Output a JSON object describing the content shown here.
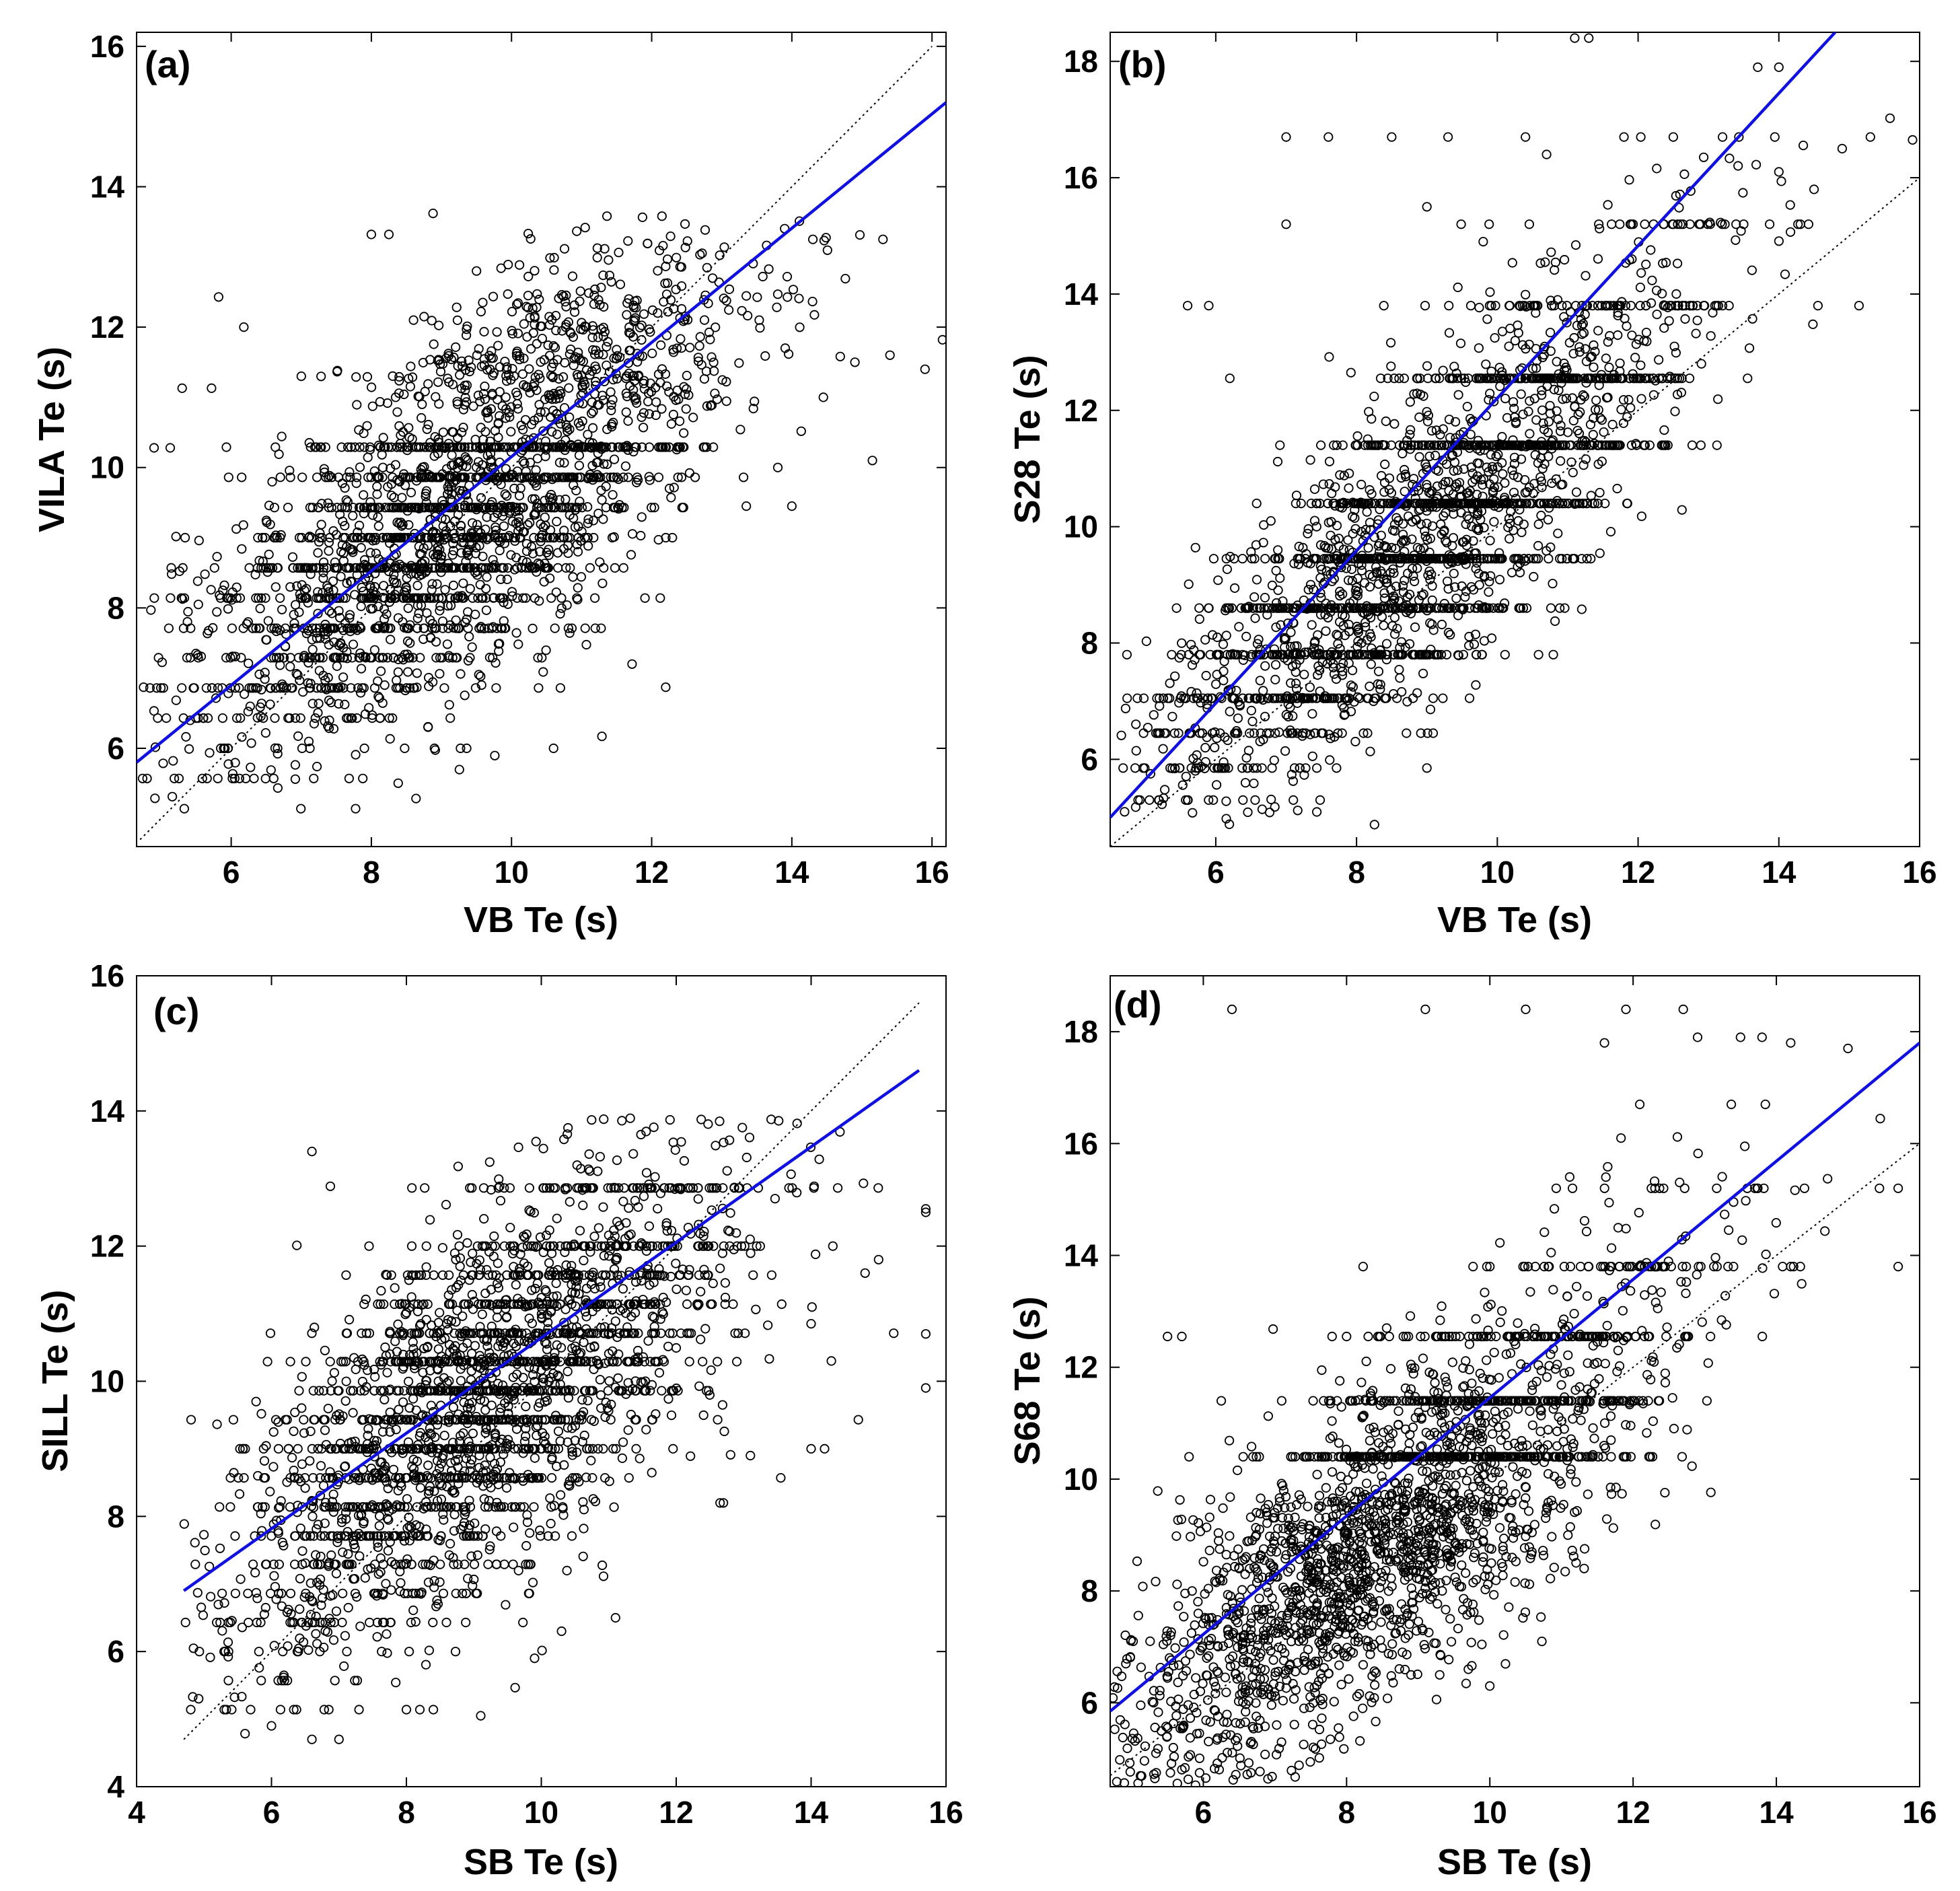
{
  "colors": {
    "fit_line": "#1010e0",
    "points": "#000000",
    "reference_line": "#000000"
  },
  "chart_data": [
    {
      "type": "scatter",
      "panel_label": "(a)",
      "xlabel": "VB Te (s)",
      "ylabel": "VILA Te (s)",
      "xlim": [
        4.65,
        16.2
      ],
      "ylim": [
        4.6,
        16.2
      ],
      "xticks": [
        6,
        8,
        10,
        12,
        14,
        16
      ],
      "yticks": [
        6,
        8,
        10,
        12,
        14,
        16
      ],
      "reference_line": {
        "style": "dotted",
        "x": [
          4.7,
          16.0
        ],
        "y": [
          4.7,
          16.0
        ]
      },
      "fit_line": {
        "x": [
          4.65,
          16.2
        ],
        "y": [
          5.8,
          15.2
        ]
      },
      "point_cloud": {
        "center": [
          9.2,
          9.3
        ],
        "spread": [
          1.9,
          1.75
        ],
        "correlation": 0.72,
        "x_range": [
          4.7,
          16.1
        ],
        "y_range": [
          5.1,
          13.6
        ],
        "quantized_y_levels": [
          5.14,
          5.57,
          6.0,
          6.43,
          6.86,
          7.29,
          7.71,
          8.14,
          8.57,
          9.0,
          9.43,
          9.86,
          10.29
        ]
      },
      "points": [
        [
          4.75,
          6.87
        ],
        [
          4.9,
          10.28
        ],
        [
          5.13,
          10.28
        ],
        [
          5.3,
          11.13
        ],
        [
          5.72,
          11.13
        ],
        [
          5.82,
          12.43
        ],
        [
          6.18,
          12.0
        ],
        [
          7.0,
          11.3
        ],
        [
          8.0,
          13.32
        ],
        [
          8.25,
          13.32
        ],
        [
          8.88,
          13.62
        ],
        [
          9.5,
          12.8
        ],
        [
          10.6,
          6.0
        ],
        [
          11.29,
          6.17
        ],
        [
          11.72,
          7.2
        ],
        [
          12.2,
          6.87
        ],
        [
          13.35,
          9.45
        ],
        [
          13.8,
          10.0
        ],
        [
          14.0,
          9.45
        ],
        [
          14.3,
          13.25
        ],
        [
          14.45,
          11.0
        ],
        [
          14.9,
          11.5
        ],
        [
          15.15,
          10.1
        ],
        [
          15.3,
          13.25
        ],
        [
          15.4,
          11.6
        ],
        [
          15.9,
          11.4
        ],
        [
          16.15,
          11.82
        ]
      ]
    },
    {
      "type": "scatter",
      "panel_label": "(b)",
      "xlabel": "VB Te (s)",
      "ylabel": "S28 Te (s)",
      "xlim": [
        4.5,
        16.0
      ],
      "ylim": [
        4.5,
        18.5
      ],
      "xticks": [
        6,
        8,
        10,
        12,
        14,
        16
      ],
      "yticks": [
        6,
        8,
        10,
        12,
        14,
        16,
        18
      ],
      "reference_line": {
        "style": "dotted",
        "x": [
          4.5,
          16.0
        ],
        "y": [
          4.5,
          16.0
        ]
      },
      "fit_line": {
        "x": [
          4.5,
          14.8
        ],
        "y": [
          5.0,
          18.5
        ]
      },
      "point_cloud": {
        "center": [
          9.0,
          9.9
        ],
        "spread": [
          1.9,
          2.3
        ],
        "correlation": 0.82,
        "x_range": [
          4.6,
          15.9
        ],
        "y_range": [
          4.8,
          17.9
        ],
        "quantized_y_levels": [
          5.3,
          5.85,
          6.45,
          7.05,
          7.8,
          8.6,
          9.45,
          10.4,
          11.4,
          12.55,
          13.8,
          15.2,
          16.7
        ]
      },
      "points": [
        [
          5.6,
          13.8
        ],
        [
          5.9,
          13.8
        ],
        [
          6.2,
          12.55
        ],
        [
          7.0,
          15.2
        ],
        [
          7.0,
          16.7
        ],
        [
          8.5,
          16.7
        ],
        [
          9.0,
          15.5
        ],
        [
          9.3,
          16.7
        ],
        [
          9.8,
          14.9
        ],
        [
          10.7,
          16.4
        ],
        [
          11.1,
          18.4
        ],
        [
          11.3,
          18.4
        ],
        [
          11.2,
          8.58
        ],
        [
          9.0,
          5.85
        ],
        [
          12.9,
          12.8
        ],
        [
          13.7,
          17.9
        ],
        [
          14.0,
          17.9
        ],
        [
          14.0,
          16.1
        ],
        [
          14.5,
          15.8
        ],
        [
          14.9,
          16.5
        ],
        [
          15.3,
          16.7
        ],
        [
          15.9,
          16.65
        ],
        [
          13.2,
          16.7
        ],
        [
          12.5,
          16.7
        ],
        [
          11.8,
          16.7
        ],
        [
          10.4,
          16.7
        ],
        [
          7.6,
          16.7
        ],
        [
          13.5,
          15.2
        ],
        [
          13.2,
          13.8
        ]
      ]
    },
    {
      "type": "scatter",
      "panel_label": "(c)",
      "xlabel": "SB Te (s)",
      "ylabel": "SILL Te (s)",
      "xlim": [
        4.0,
        16.0
      ],
      "ylim": [
        4.0,
        16.0
      ],
      "xticks": [
        4,
        6,
        8,
        10,
        12,
        14,
        16
      ],
      "yticks": [
        4,
        6,
        8,
        10,
        12,
        14,
        16
      ],
      "reference_line": {
        "style": "dotted",
        "x": [
          4.7,
          15.6
        ],
        "y": [
          4.7,
          15.6
        ]
      },
      "fit_line": {
        "x": [
          4.7,
          15.6
        ],
        "y": [
          6.9,
          14.6
        ]
      },
      "point_cloud": {
        "center": [
          9.1,
          9.7
        ],
        "spread": [
          1.9,
          1.85
        ],
        "correlation": 0.7,
        "x_range": [
          4.7,
          15.7
        ],
        "y_range": [
          4.7,
          13.9
        ],
        "quantized_y_levels": [
          5.14,
          5.57,
          6.0,
          6.43,
          6.86,
          7.29,
          7.71,
          8.14,
          8.57,
          9.0,
          9.43,
          9.86,
          10.29,
          10.71,
          11.14,
          11.57,
          12.0,
          12.86
        ]
      },
      "points": [
        [
          5.3,
          5.14
        ],
        [
          6.6,
          13.4
        ],
        [
          6.6,
          4.7
        ],
        [
          7.0,
          4.7
        ],
        [
          6.0,
          4.9
        ],
        [
          8.0,
          5.14
        ],
        [
          8.2,
          5.14
        ],
        [
          8.4,
          5.14
        ],
        [
          13.1,
          8.9
        ],
        [
          13.55,
          8.57
        ],
        [
          14.0,
          9.0
        ],
        [
          14.2,
          9.0
        ],
        [
          14.7,
          9.43
        ],
        [
          14.3,
          10.3
        ],
        [
          14.0,
          10.85
        ],
        [
          15.7,
          12.5
        ],
        [
          15.7,
          12.55
        ],
        [
          15.7,
          10.7
        ],
        [
          15.7,
          9.9
        ],
        [
          15.0,
          11.8
        ],
        [
          14.8,
          11.6
        ],
        [
          12.65,
          8.2
        ],
        [
          12.7,
          8.2
        ],
        [
          11.1,
          6.5
        ],
        [
          10.3,
          6.3
        ],
        [
          9.9,
          5.9
        ]
      ]
    },
    {
      "type": "scatter",
      "panel_label": "(d)",
      "xlabel": "SB Te (s)",
      "ylabel": "S68 Te (s)",
      "xlim": [
        4.7,
        16.0
      ],
      "ylim": [
        4.5,
        19.0
      ],
      "xticks": [
        6,
        8,
        10,
        12,
        14,
        16
      ],
      "yticks": [
        6,
        8,
        10,
        12,
        14,
        16,
        18
      ],
      "reference_line": {
        "style": "dotted",
        "x": [
          4.7,
          16.0
        ],
        "y": [
          4.7,
          16.0
        ]
      },
      "fit_line": {
        "x": [
          4.7,
          16.0
        ],
        "y": [
          5.85,
          17.8
        ]
      },
      "point_cloud": {
        "center": [
          8.7,
          9.3
        ],
        "spread": [
          2.0,
          2.4
        ],
        "correlation": 0.8,
        "x_range": [
          4.7,
          15.7
        ],
        "y_range": [
          4.5,
          18.4
        ],
        "quantized_y_levels": [
          10.4,
          11.4,
          12.55,
          13.8,
          15.2,
          16.7
        ]
      },
      "points": [
        [
          6.4,
          18.4
        ],
        [
          9.1,
          18.4
        ],
        [
          10.5,
          18.4
        ],
        [
          11.9,
          18.4
        ],
        [
          12.7,
          18.4
        ],
        [
          12.9,
          17.9
        ],
        [
          13.5,
          17.9
        ],
        [
          13.8,
          17.9
        ],
        [
          14.2,
          17.8
        ],
        [
          15.0,
          17.7
        ],
        [
          11.6,
          17.8
        ],
        [
          15.7,
          15.2
        ],
        [
          15.7,
          13.8
        ],
        [
          14.2,
          13.8
        ],
        [
          5.5,
          12.55
        ],
        [
          5.7,
          12.55
        ],
        [
          9.7,
          6.6
        ],
        [
          9.3,
          6.5
        ],
        [
          10.0,
          6.3
        ]
      ]
    }
  ]
}
